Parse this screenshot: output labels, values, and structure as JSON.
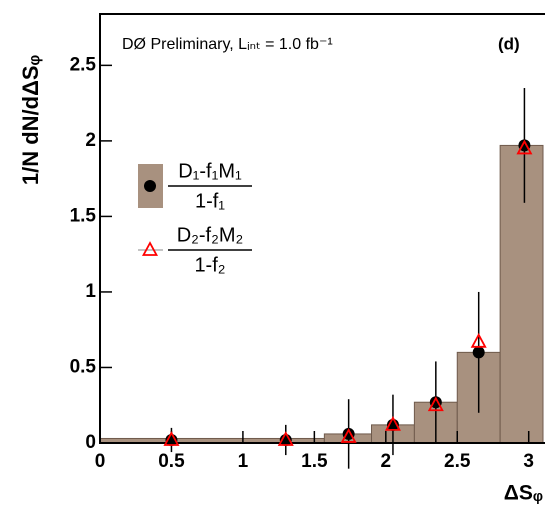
{
  "chart_data": {
    "type": "histogram",
    "annotation": "DØ Preliminary,  Lᵢₙₜ = 1.0 fb⁻¹",
    "panel_label": "(d)",
    "y_label": "1/N dN/dΔSᵩ",
    "x_label": "ΔSᵩ",
    "bins": [
      0,
      1,
      1.57,
      1.9,
      2.2,
      2.5,
      2.8,
      3.1
    ],
    "counts": [
      0.03,
      0.03,
      0.06,
      0.12,
      0.27,
      0.6,
      1.97
    ],
    "color": "#a8917f",
    "series": [
      {
        "name": "D₁-f₁M₁",
        "name_denominator": "1-f₁",
        "marker": "circle",
        "color": "#000000",
        "x": [
          0.5,
          1.3,
          1.74,
          2.05,
          2.35,
          2.65,
          2.97
        ],
        "values": [
          0.02,
          0.02,
          0.06,
          0.12,
          0.27,
          0.6,
          1.97
        ],
        "errors": [
          0.08,
          0.1,
          0.23,
          0.2,
          0.27,
          0.4,
          0.38
        ]
      },
      {
        "name": "D₂-f₂M₂",
        "name_denominator": "1-f₂",
        "marker": "triangle",
        "color": "#ff0000",
        "x": [
          0.5,
          1.3,
          1.74,
          2.05,
          2.35,
          2.65,
          2.97
        ],
        "values": [
          0.02,
          0.02,
          0.04,
          0.12,
          0.25,
          0.67,
          1.95
        ]
      }
    ],
    "xlim": [
      0,
      3.1
    ],
    "ylim": [
      0,
      2.84
    ],
    "xticks": [
      0,
      0.5,
      1,
      1.5,
      2,
      2.5,
      3
    ],
    "yticks": [
      0,
      0.5,
      1,
      1.5,
      2,
      2.5
    ]
  }
}
